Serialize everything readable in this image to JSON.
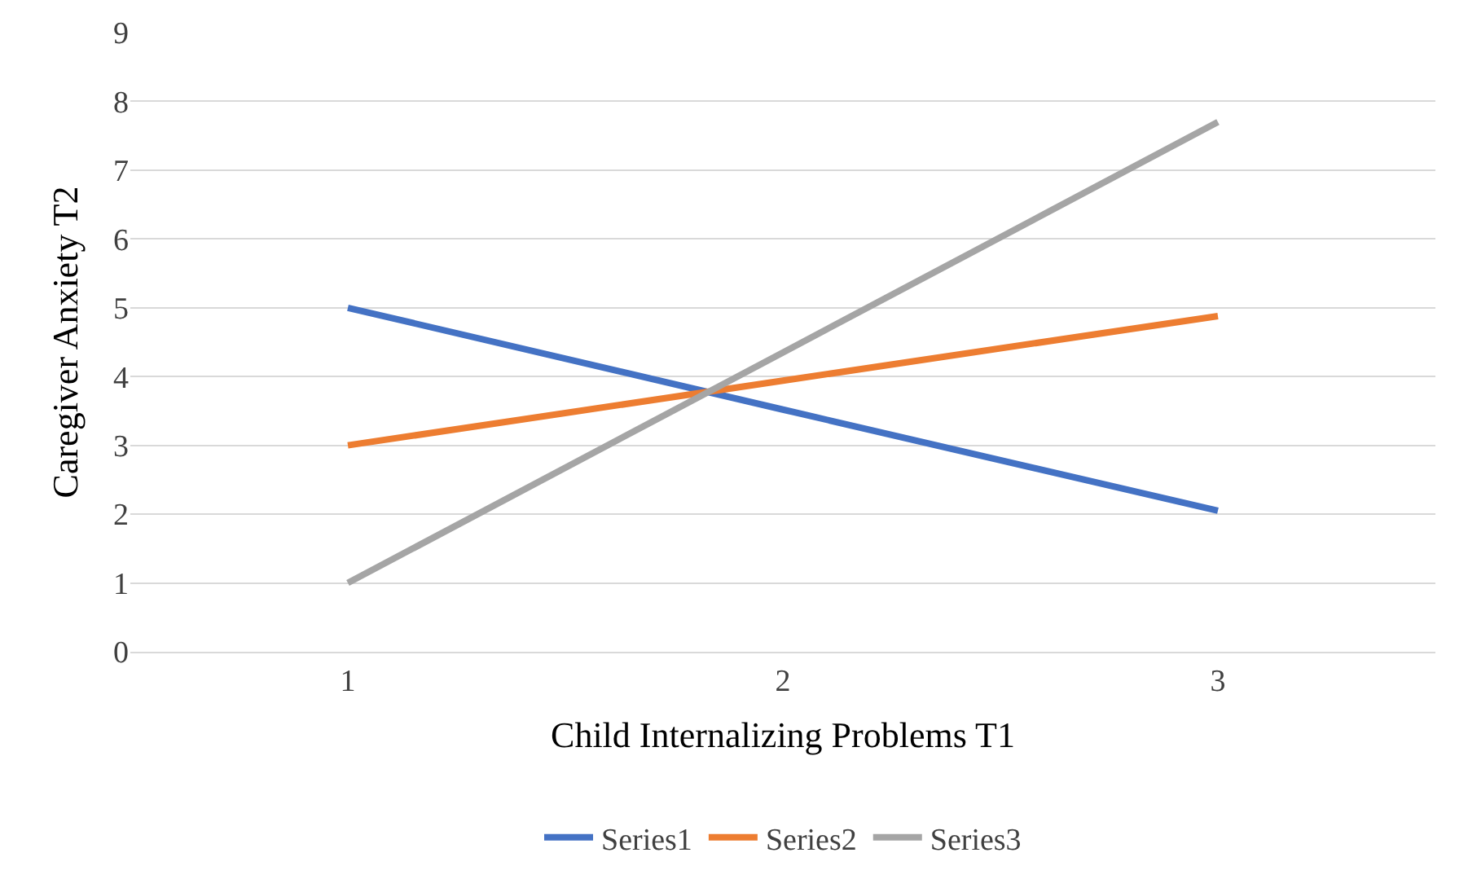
{
  "chart_data": {
    "type": "line",
    "xlabel": "Child Internalizing Problems T1",
    "ylabel": "Caregiver Anxiety T2",
    "categories": [
      "1",
      "2",
      "3"
    ],
    "series": [
      {
        "name": "Series1",
        "color": "#4472c4",
        "values": [
          5,
          3.52,
          2.05
        ]
      },
      {
        "name": "Series2",
        "color": "#ed7d31",
        "values": [
          3,
          3.94,
          4.88
        ]
      },
      {
        "name": "Series3",
        "color": "#a5a5a5",
        "values": [
          1,
          4.35,
          7.7
        ]
      }
    ],
    "ylim": [
      0,
      9
    ],
    "yticks": [
      0,
      1,
      2,
      3,
      4,
      5,
      6,
      7,
      8,
      9
    ],
    "grid": "y",
    "legend": "bottom",
    "marker": "none",
    "line_style": "solid"
  }
}
